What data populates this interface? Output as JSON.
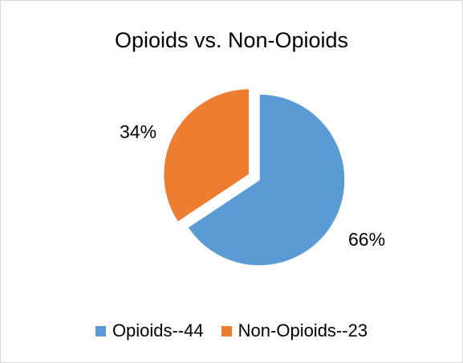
{
  "chart_data": {
    "type": "pie",
    "title": "Opioids vs. Non-Opioids",
    "slices": [
      {
        "label": "Opioids--44",
        "value": 44,
        "percent_label": "66%",
        "color": "#5b9bd5"
      },
      {
        "label": "Non-Opioids--23",
        "value": 23,
        "percent_label": "34%",
        "color": "#ed7d31"
      }
    ],
    "legend_position": "bottom"
  }
}
